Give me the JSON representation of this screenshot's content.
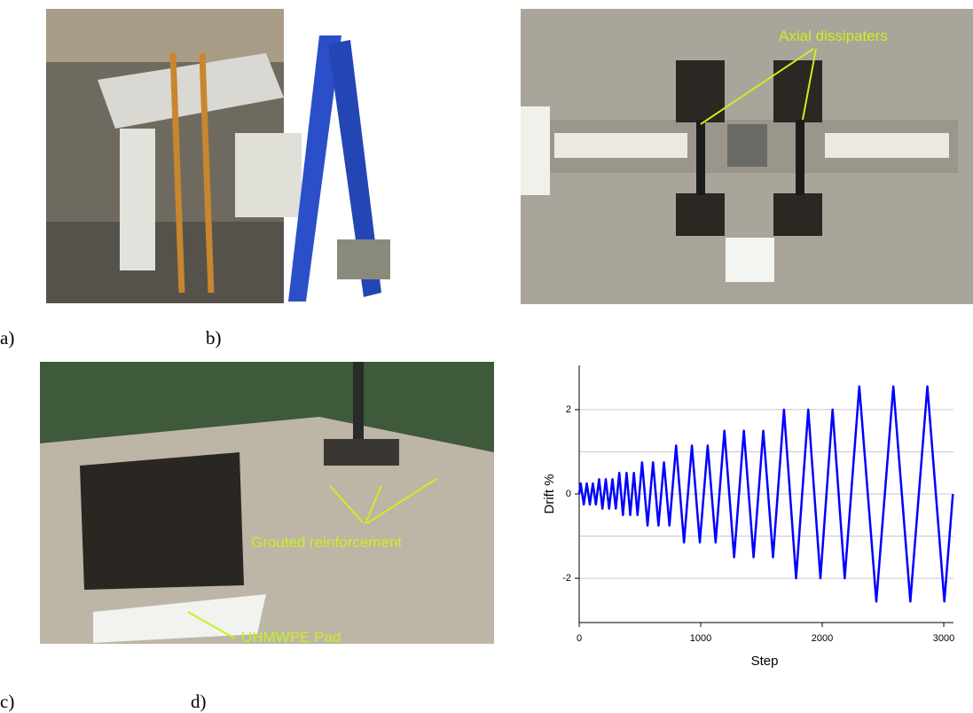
{
  "panel_labels": [
    "a)",
    "b)",
    "c)",
    "d)"
  ],
  "annotations": [
    "Axial dissipaters",
    "Grouted reinforcement",
    "UHMWPE Pad"
  ],
  "chart_data": {
    "type": "line",
    "x_label": "Step",
    "y_label": "Drift %",
    "x": [
      0,
      12.5,
      37.5,
      62.5,
      87.5,
      112.5,
      137.5,
      163.75,
      191.25,
      218.75,
      246.25,
      273.75,
      301.25,
      330,
      360,
      390,
      420,
      450,
      480,
      517.5,
      562.5,
      607.5,
      652.5,
      697.5,
      742.5,
      797.5,
      862.5,
      927.5,
      992.5,
      1057.5,
      1122.5,
      1195,
      1275,
      1355,
      1435,
      1515,
      1595,
      1685,
      1785,
      1885,
      1985,
      2085,
      2185,
      2305,
      2445,
      2585,
      2725,
      2865,
      3005,
      3075
    ],
    "series": [
      {
        "color": "#0000ff",
        "values": [
          0,
          0.25,
          -0.25,
          0.25,
          -0.25,
          0.25,
          -0.25,
          0.35,
          -0.35,
          0.35,
          -0.35,
          0.35,
          -0.35,
          0.5,
          -0.5,
          0.5,
          -0.5,
          0.5,
          -0.5,
          0.75,
          -0.75,
          0.75,
          -0.75,
          0.75,
          -0.75,
          1.15,
          -1.15,
          1.15,
          -1.15,
          1.15,
          -1.15,
          1.5,
          -1.5,
          1.5,
          -1.5,
          1.5,
          -1.5,
          2,
          -2,
          2,
          -2,
          2,
          -2,
          2.55,
          -2.55,
          2.55,
          -2.55,
          2.55,
          -2.55,
          0
        ]
      }
    ],
    "xlim": [
      0,
      3080
    ],
    "xticks": [
      0,
      1000,
      2000,
      3000
    ],
    "ylim": [
      -3.05,
      3.05
    ],
    "yticks": [
      -2,
      0,
      2
    ],
    "ygrid": [
      -2,
      -1,
      0,
      1,
      2
    ],
    "grid": true
  }
}
